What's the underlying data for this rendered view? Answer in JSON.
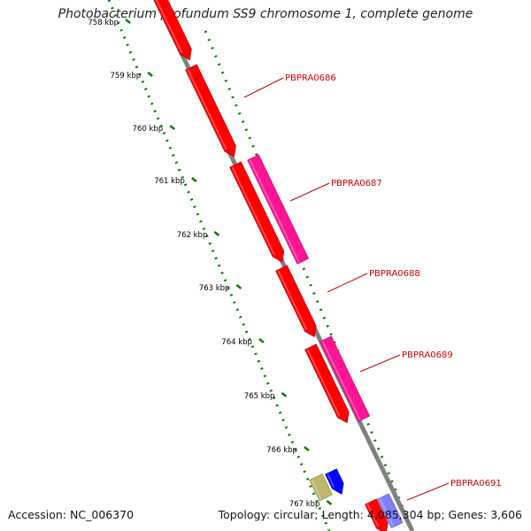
{
  "title": "Photobacterium profundum SS9 chromosome 1, complete genome",
  "accession": "Accession: NC_006370",
  "summary": "Topology: circular; Length: 4,085,304 bp; Genes: 3,606",
  "ticks": [
    {
      "label": "758 kbp",
      "kbp": 758
    },
    {
      "label": "759 kbp",
      "kbp": 759
    },
    {
      "label": "760 kbp",
      "kbp": 760
    },
    {
      "label": "761 kbp",
      "kbp": 761
    },
    {
      "label": "762 kbp",
      "kbp": 762
    },
    {
      "label": "763 kbp",
      "kbp": 763
    },
    {
      "label": "764 kbp",
      "kbp": 764
    },
    {
      "label": "765 kbp",
      "kbp": 765
    },
    {
      "label": "766 kbp",
      "kbp": 766
    },
    {
      "label": "767 kbp",
      "kbp": 767
    }
  ],
  "gene_labels": [
    "PBPRA0686",
    "PBPRA0687",
    "PBPRA0688",
    "PBPRA0689",
    "PBPRA0691"
  ],
  "colors": {
    "cds": "#ff0000",
    "pink": "#ff1493",
    "olive": "#bdb76b",
    "blue": "#0000ff",
    "lavender": "#8080ff",
    "backbone": "#808080",
    "ticks": "#008000",
    "label": "#cc0000"
  }
}
